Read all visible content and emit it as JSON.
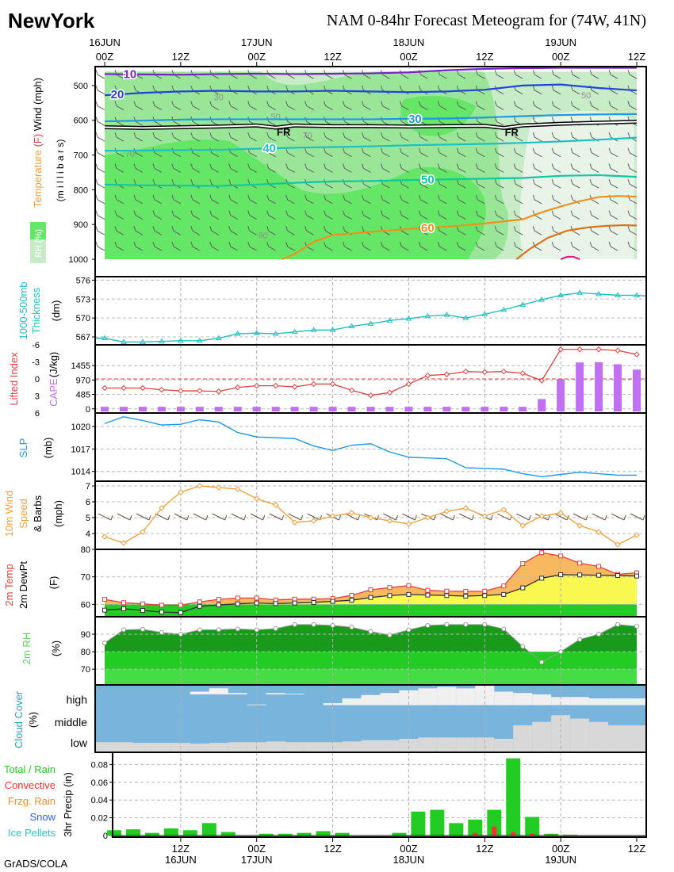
{
  "header": {
    "station": "NewYork",
    "title": "NAM 0-84hr Forecast Meteogram for (74W, 41N)"
  },
  "time_axis": {
    "top_labels": [
      {
        "h": 0,
        "text": "16JUN",
        "sub": "00Z"
      },
      {
        "h": 12,
        "text": "",
        "sub": "12Z"
      },
      {
        "h": 24,
        "text": "17JUN",
        "sub": "00Z"
      },
      {
        "h": 36,
        "text": "",
        "sub": "12Z"
      },
      {
        "h": 48,
        "text": "18JUN",
        "sub": "00Z"
      },
      {
        "h": 60,
        "text": "",
        "sub": "12Z"
      },
      {
        "h": 72,
        "text": "19JUN",
        "sub": "00Z"
      },
      {
        "h": 84,
        "text": "",
        "sub": "12Z"
      }
    ],
    "bottom_labels": [
      {
        "h": 12,
        "text": "12Z",
        "sub": "16JUN"
      },
      {
        "h": 24,
        "text": "00Z",
        "sub": "17JUN"
      },
      {
        "h": 36,
        "text": "12Z",
        "sub": ""
      },
      {
        "h": 48,
        "text": "00Z",
        "sub": "18JUN"
      },
      {
        "h": 60,
        "text": "12Z",
        "sub": ""
      },
      {
        "h": 72,
        "text": "00Z",
        "sub": "19JUN"
      },
      {
        "h": 84,
        "text": "12Z",
        "sub": ""
      }
    ]
  },
  "footer": "GrADS/COLA",
  "colors": {
    "rh_light": "#c8ecc8",
    "rh_mid": "#99e699",
    "rh_strong": "#66e666",
    "thickness": "#20c0c0",
    "lifted": "#e04040",
    "cape": "#c070f0",
    "slp": "#1e9be0",
    "wind10m": "#f0a040",
    "temp_fill": "#f8b860",
    "dew_fill": "#f8f850",
    "rain": "#22cc22",
    "convective": "#ff3030",
    "cloud_blue": "#78b4dc",
    "cloud_gray": "#d8d8d8"
  },
  "chart_data": [
    {
      "id": "upper_air",
      "type": "heatmap",
      "ylabel_parts": [
        {
          "text": "Temperature",
          "color": "#f0a040"
        },
        {
          "text": " (F) ",
          "color": "#e04040"
        },
        {
          "text": "Wind (mph)",
          "color": "#000000"
        }
      ],
      "ylabel2": "(m i l l i b a r s)",
      "rh_legend": "RH (%)",
      "y_ticks": [
        500,
        600,
        700,
        800,
        900,
        1000
      ],
      "ylim": [
        1000,
        450
      ],
      "isotherms": [
        {
          "label": "10",
          "color": "#7a22c8",
          "label_at": 4,
          "x": [
            0,
            6,
            12,
            18,
            24,
            30,
            36,
            42,
            48,
            54,
            60,
            66,
            72,
            78,
            84
          ],
          "p": [
            467,
            468,
            469,
            467,
            466,
            467,
            466,
            465,
            462,
            456,
            452,
            450,
            449,
            449,
            449
          ]
        },
        {
          "label": "20",
          "color": "#2244dd",
          "label_at": 2,
          "x": [
            0,
            6,
            12,
            18,
            24,
            30,
            36,
            42,
            48,
            54,
            60,
            66,
            72,
            78,
            84
          ],
          "p": [
            528,
            521,
            517,
            515,
            517,
            517,
            515,
            517,
            519,
            517,
            512,
            500,
            497,
            507,
            514
          ]
        },
        {
          "label": "30",
          "color": "#1e9be0",
          "label_at": 49,
          "x": [
            0,
            6,
            12,
            18,
            24,
            30,
            36,
            42,
            48,
            54,
            60,
            66,
            72,
            78,
            84
          ],
          "p": [
            603,
            601,
            598,
            597,
            597,
            597,
            597,
            597,
            596,
            595,
            592,
            588,
            585,
            583,
            582
          ]
        },
        {
          "label": "40",
          "color": "#20c0c0",
          "label_at": 26,
          "x": [
            0,
            6,
            12,
            18,
            24,
            30,
            36,
            42,
            48,
            54,
            60,
            66,
            72,
            78,
            84
          ],
          "p": [
            688,
            687,
            686,
            685,
            682,
            679,
            677,
            675,
            672,
            670,
            668,
            665,
            661,
            656,
            650
          ]
        },
        {
          "label": "50",
          "color": "#10c8a0",
          "label_at": 51,
          "x": [
            0,
            6,
            12,
            18,
            24,
            30,
            36,
            42,
            48,
            54,
            60,
            66,
            72,
            78,
            84
          ],
          "p": [
            785,
            787,
            788,
            789,
            785,
            780,
            776,
            775,
            772,
            770,
            768,
            766,
            760,
            758,
            763
          ]
        },
        {
          "label": "60",
          "color": "#f09020",
          "label_at": 51,
          "x": [
            28,
            30,
            33,
            36,
            39,
            42,
            45,
            48,
            51,
            54,
            57,
            60,
            63,
            66,
            69,
            72,
            75,
            78,
            81,
            84
          ],
          "p": [
            1000,
            985,
            950,
            930,
            926,
            921,
            917,
            913,
            910,
            906,
            902,
            897,
            891,
            885,
            865,
            848,
            833,
            821,
            818,
            820
          ]
        },
        {
          "label": "",
          "color": "#e07010",
          "label_at": null,
          "x": [
            65,
            67,
            70,
            73,
            76,
            79,
            82,
            84
          ],
          "p": [
            1000,
            972,
            938,
            918,
            909,
            904,
            902,
            903
          ]
        },
        {
          "label": "",
          "color": "#e02080",
          "label_at": null,
          "x": [
            72,
            73,
            74,
            75
          ],
          "p": [
            1000,
            993,
            993,
            1000
          ]
        }
      ],
      "freezing_level": {
        "label": "FR",
        "x": [
          0,
          6,
          12,
          18,
          24,
          27,
          30,
          36,
          42,
          48,
          54,
          60,
          63,
          66,
          72,
          78,
          84
        ],
        "p": [
          620,
          622,
          620,
          618,
          615,
          621,
          615,
          617,
          617,
          618,
          617,
          616,
          622,
          615,
          610,
          607,
          604
        ],
        "label_at": [
          27,
          63
        ]
      },
      "rh_isolines": [
        {
          "label": "30",
          "x": 18,
          "p": 542
        },
        {
          "label": "50",
          "x": 27,
          "p": 598
        },
        {
          "label": "70",
          "x": 32,
          "p": 652
        },
        {
          "label": "70",
          "x": 4,
          "p": 704
        },
        {
          "label": "90",
          "x": 25,
          "p": 940
        },
        {
          "label": "50",
          "x": 76,
          "p": 537
        }
      ]
    },
    {
      "id": "thickness",
      "type": "line",
      "ylabel": "1000-500mb Thickness",
      "yunit": "(dm)",
      "ylim": [
        566,
        576.3
      ],
      "y_ticks": [
        567,
        570,
        573,
        576
      ],
      "x": [
        0,
        3,
        6,
        9,
        12,
        15,
        18,
        21,
        24,
        27,
        30,
        33,
        36,
        39,
        42,
        45,
        48,
        51,
        54,
        57,
        60,
        63,
        66,
        69,
        72,
        75,
        78,
        81,
        84
      ],
      "values": [
        566.8,
        566.2,
        566.2,
        566.3,
        566.4,
        566.4,
        566.8,
        567.5,
        567.6,
        567.5,
        567.8,
        568.1,
        568.1,
        568.7,
        569.1,
        569.6,
        569.9,
        570.3,
        570.5,
        570.0,
        570.6,
        571.3,
        572.1,
        572.9,
        573.6,
        574.0,
        573.8,
        573.6,
        573.6
      ]
    },
    {
      "id": "stability",
      "type": "bar",
      "ylabel_left": "Lifted Index",
      "ylabel_right": "CAPE",
      "yunit": "(J/kg)",
      "li_ticks": [
        -6,
        -3,
        0,
        3,
        6
      ],
      "li_ylim": [
        -6,
        6
      ],
      "cape_ticks": [
        0,
        485,
        970,
        1455
      ],
      "cape_ylim": [
        -60,
        1940
      ],
      "x": [
        0,
        3,
        6,
        9,
        12,
        15,
        18,
        21,
        24,
        27,
        30,
        33,
        36,
        39,
        42,
        45,
        48,
        51,
        54,
        57,
        60,
        63,
        66,
        69,
        72,
        75,
        78,
        81,
        84
      ],
      "lifted": [
        1.6,
        1.6,
        1.6,
        1.9,
        2.1,
        2.1,
        2.2,
        1.5,
        1.2,
        1.2,
        1.4,
        0.9,
        0.9,
        2.0,
        2.9,
        2.4,
        0.9,
        -0.6,
        -0.8,
        -1.3,
        -1.2,
        -1.3,
        -1.0,
        0.3,
        -5.2,
        -5.2,
        -5.2,
        -5.0,
        -4.3
      ],
      "cape": [
        70,
        70,
        70,
        70,
        70,
        70,
        70,
        70,
        70,
        70,
        70,
        70,
        70,
        70,
        70,
        70,
        70,
        70,
        70,
        70,
        70,
        70,
        70,
        330,
        1000,
        1560,
        1570,
        1500,
        1320
      ],
      "cape_x": [
        0,
        3,
        6,
        9,
        12,
        15,
        18,
        21,
        24,
        27,
        30,
        33,
        36,
        39,
        42,
        45,
        48,
        51,
        54,
        57,
        60,
        63,
        66,
        69,
        72,
        75,
        78,
        81,
        84
      ]
    },
    {
      "id": "slp",
      "type": "line",
      "ylabel": "SLP",
      "yunit": "(mb)",
      "ylim": [
        1012.7,
        1021.8
      ],
      "y_ticks": [
        1014,
        1017,
        1020
      ],
      "x": [
        0,
        3,
        6,
        9,
        12,
        15,
        18,
        21,
        24,
        27,
        30,
        33,
        36,
        39,
        42,
        45,
        48,
        51,
        54,
        57,
        60,
        63,
        66,
        69,
        72,
        75,
        78,
        81,
        84
      ],
      "values": [
        1020.4,
        1021.3,
        1020.8,
        1020.2,
        1020.3,
        1020.9,
        1020.6,
        1019.2,
        1018.6,
        1018.5,
        1018.4,
        1017.4,
        1016.8,
        1017.5,
        1017.7,
        1016.6,
        1015.9,
        1015.8,
        1015.7,
        1014.5,
        1014.4,
        1014.3,
        1013.7,
        1013.3,
        1013.6,
        1013.9,
        1013.7,
        1013.5,
        1013.5
      ]
    },
    {
      "id": "wind10m",
      "type": "line",
      "ylabel_parts": [
        {
          "text": "10m Wind",
          "color": "#f0a040"
        },
        {
          "text": "Speed",
          "color": "#f0a040"
        },
        {
          "text": "& Barbs",
          "color": "#000000"
        }
      ],
      "yunit": "(mph)",
      "ylim": [
        3,
        7.3
      ],
      "y_ticks": [
        4,
        5,
        6,
        7
      ],
      "x": [
        0,
        3,
        6,
        9,
        12,
        15,
        18,
        21,
        24,
        27,
        30,
        33,
        36,
        39,
        42,
        45,
        48,
        51,
        54,
        57,
        60,
        63,
        66,
        69,
        72,
        75,
        78,
        81,
        84
      ],
      "values": [
        3.8,
        3.4,
        4.1,
        5.6,
        6.6,
        7.0,
        6.9,
        6.8,
        6.2,
        5.8,
        4.7,
        4.8,
        5.1,
        5.3,
        5.0,
        4.8,
        4.6,
        5.0,
        5.4,
        5.6,
        5.1,
        5.5,
        4.5,
        5.1,
        5.3,
        4.5,
        4.1,
        3.3,
        3.9
      ]
    },
    {
      "id": "temp_dew",
      "type": "area",
      "ylabel_parts": [
        {
          "text": "2m Temp",
          "color": "#e04040"
        },
        {
          "text": "2m DewPt",
          "color": "#000000"
        }
      ],
      "yunit": "(F)",
      "ylim": [
        55.5,
        80
      ],
      "y_ticks": [
        60,
        70,
        80
      ],
      "x": [
        0,
        3,
        6,
        9,
        12,
        15,
        18,
        21,
        24,
        27,
        30,
        33,
        36,
        39,
        42,
        45,
        48,
        51,
        54,
        57,
        60,
        63,
        66,
        69,
        72,
        75,
        78,
        81,
        84
      ],
      "temp": [
        61.8,
        60.6,
        60.2,
        59.7,
        59.7,
        60.9,
        61.8,
        62.3,
        62.3,
        61.6,
        61.9,
        61.9,
        62.1,
        63.3,
        65.3,
        66.1,
        66.8,
        65.1,
        64.8,
        64.7,
        64.8,
        66.7,
        74.8,
        78.8,
        77.6,
        75.0,
        73.8,
        70.9,
        71.5
      ],
      "dew": [
        57.9,
        58.4,
        57.8,
        57.2,
        57.0,
        59.3,
        59.8,
        60.2,
        60.5,
        60.3,
        60.5,
        60.7,
        61.1,
        61.5,
        62.5,
        63.2,
        63.6,
        63.4,
        63.2,
        63.0,
        63.2,
        63.6,
        66.0,
        69.5,
        70.8,
        70.7,
        70.6,
        70.5,
        70.3
      ]
    },
    {
      "id": "rh2m",
      "type": "area",
      "ylabel": "2m RH",
      "yunit": "(%)",
      "ylim": [
        61,
        100
      ],
      "y_ticks": [
        70,
        80,
        90
      ],
      "x": [
        0,
        3,
        6,
        9,
        12,
        15,
        18,
        21,
        24,
        27,
        30,
        33,
        36,
        39,
        42,
        45,
        48,
        51,
        54,
        57,
        60,
        63,
        66,
        69,
        72,
        75,
        78,
        81,
        84
      ],
      "values": [
        85,
        92.5,
        92.8,
        91,
        90,
        92.5,
        92.6,
        93,
        92.5,
        93.2,
        95.5,
        95.5,
        95,
        94,
        91.5,
        89.5,
        92.5,
        95,
        95.5,
        95.5,
        95.5,
        93,
        83,
        74,
        80,
        87,
        90,
        95.5,
        94.5
      ]
    },
    {
      "id": "cloud",
      "type": "area",
      "ylabel": "Cloud Cover",
      "yunit": "(%)",
      "levels": [
        "high",
        "middle",
        "low"
      ],
      "x": [
        0,
        3,
        6,
        9,
        12,
        15,
        18,
        21,
        24,
        27,
        30,
        33,
        36,
        39,
        42,
        45,
        48,
        51,
        54,
        57,
        60,
        63,
        66,
        69,
        72,
        75,
        78,
        81,
        84
      ],
      "low": [
        5,
        5,
        4,
        4,
        4,
        3,
        4,
        5,
        5,
        6,
        5,
        5,
        5,
        6,
        8,
        8,
        10,
        12,
        12,
        12,
        12,
        10,
        30,
        35,
        45,
        40,
        35,
        30,
        30
      ],
      "middle": [
        60,
        62,
        63,
        64,
        65,
        67,
        69,
        70,
        71,
        70,
        70,
        70,
        73,
        80,
        85,
        88,
        92,
        95,
        97,
        95,
        92,
        90,
        88,
        86,
        82,
        82,
        80,
        80,
        80
      ],
      "high": [
        75,
        78,
        80,
        80,
        82,
        90,
        95,
        88,
        85,
        88,
        87,
        86,
        86,
        86,
        86,
        86,
        86,
        86,
        86,
        86,
        100,
        86,
        86,
        86,
        86,
        86,
        86,
        86,
        86
      ]
    },
    {
      "id": "precip",
      "type": "bar",
      "legend": [
        {
          "text": "Total / Rain",
          "color": "#22cc22"
        },
        {
          "text": "Convective",
          "color": "#ff3030"
        },
        {
          "text": "Frzg. Rain",
          "color": "#f09020"
        },
        {
          "text": "Snow",
          "color": "#3060ff"
        },
        {
          "text": "Ice Pellets",
          "color": "#20c8c8"
        }
      ],
      "ylabel": "3hr Precip (in)",
      "ylim": [
        0,
        0.092
      ],
      "y_ticks": [
        0,
        0.02,
        0.04,
        0.06,
        0.08
      ],
      "y_tick_labels": [
        "0",
        "0.02",
        "0.04",
        "0.06",
        "0.08"
      ],
      "x": [
        3,
        6,
        9,
        12,
        15,
        18,
        21,
        24,
        27,
        30,
        33,
        36,
        39,
        42,
        45,
        48,
        51,
        54,
        57,
        60,
        63,
        66,
        69,
        72,
        75,
        78,
        81,
        84
      ],
      "total": [
        0.006,
        0.007,
        0.003,
        0.008,
        0.006,
        0.014,
        0.004,
        0.0,
        0.002,
        0.002,
        0.003,
        0.005,
        0.003,
        0.0,
        0.0,
        0.003,
        0.027,
        0.029,
        0.014,
        0.018,
        0.029,
        0.087,
        0.021,
        0.002,
        0.001,
        0.0,
        0.0,
        0.0
      ],
      "convective": [
        0,
        0,
        0,
        0,
        0,
        0,
        0,
        0,
        0,
        0,
        0,
        0,
        0,
        0,
        0,
        0,
        0,
        0,
        0,
        0.003,
        0.01,
        0.004,
        0.002,
        0.001,
        0.0005,
        0,
        0,
        0
      ]
    }
  ]
}
